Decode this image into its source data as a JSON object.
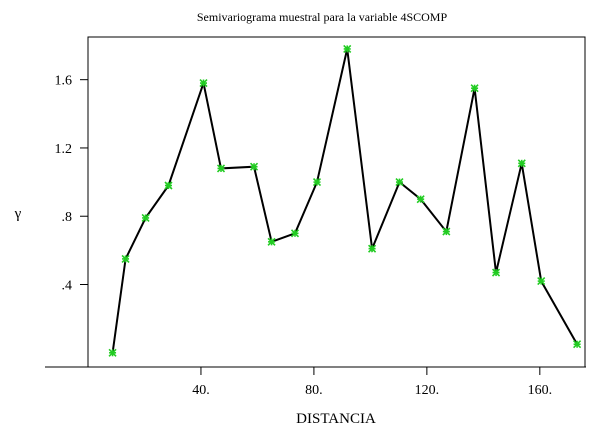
{
  "chart_data": {
    "type": "line",
    "title": "Semivariograma muestral para la variable 4SCOMP",
    "xlabel": "DISTANCIA",
    "ylabel": "γ",
    "xlim": [
      0,
      176
    ],
    "ylim": [
      -0.0833,
      1.85
    ],
    "x_ticks": [
      40,
      80,
      120,
      160
    ],
    "x_tick_labels": [
      "40.",
      "80.",
      "120.",
      "160."
    ],
    "y_ticks": [
      0.4,
      0.8,
      1.2,
      1.6
    ],
    "y_tick_labels": [
      ".4",
      ".8",
      "1.2",
      "1.6"
    ],
    "grid": false,
    "legend": "none",
    "marker_color": "#22cc22",
    "line_color": "#000000",
    "series": [
      {
        "x": [
          8.7,
          13.3,
          20.4,
          28.5,
          40.9,
          47.1,
          58.8,
          65.0,
          73.3,
          81.1,
          91.8,
          100.6,
          110.3,
          117.8,
          126.9,
          136.9,
          144.5,
          153.6,
          160.5,
          173.2
        ],
        "values": [
          0.0,
          0.55,
          0.79,
          0.98,
          1.58,
          1.08,
          1.09,
          0.65,
          0.7,
          1.0,
          1.78,
          0.61,
          1.0,
          0.9,
          0.71,
          1.55,
          0.47,
          1.11,
          0.42,
          0.05
        ]
      }
    ]
  }
}
